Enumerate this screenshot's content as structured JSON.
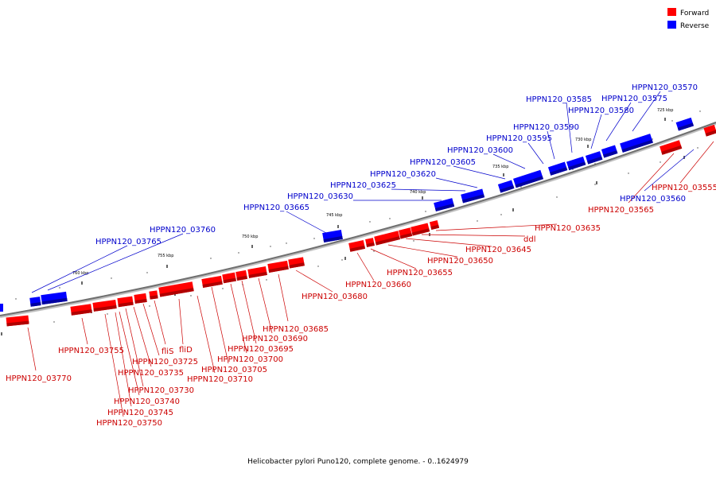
{
  "footer": "Helicobacter pylori Puno120, complete genome. - 0..1624979",
  "legend": [
    {
      "label": "Forward",
      "color": "#ff0000"
    },
    {
      "label": "Reverse",
      "color": "#0000ff"
    }
  ],
  "colors": {
    "forward": "#ff0000",
    "forward_dark": "#b00000",
    "reverse": "#0000ff",
    "reverse_dark": "#0000a0",
    "forward_label": "#cc0000",
    "reverse_label": "#0000cc",
    "backbone": "#808080"
  },
  "ticks": [
    "725 kbp",
    "730 kbp",
    "735 kbp",
    "740 kbp",
    "745 kbp",
    "750 kbp",
    "755 kbp",
    "760 kbp"
  ],
  "genes_forward": [
    "HPPN120_03555",
    "HPPN120_03565",
    "HPPN120_03635",
    "ddl",
    "HPPN120_03645",
    "HPPN120_03650",
    "HPPN120_03655",
    "HPPN120_03660",
    "HPPN120_03680",
    "HPPN120_03685",
    "HPPN120_03690",
    "HPPN120_03695",
    "HPPN120_03700",
    "HPPN120_03705",
    "HPPN120_03710",
    "fliD",
    "fliS",
    "HPPN120_03725",
    "HPPN120_03735",
    "HPPN120_03730",
    "HPPN120_03740",
    "HPPN120_03745",
    "HPPN120_03750",
    "HPPN120_03755",
    "HPPN120_03770"
  ],
  "genes_reverse": [
    "HPPN120_03570",
    "HPPN120_03575",
    "HPPN120_03580",
    "HPPN120_03585",
    "HPPN120_03590",
    "HPPN120_03595",
    "HPPN120_03600",
    "HPPN120_03605",
    "HPPN120_03620",
    "HPPN120_03625",
    "HPPN120_03630",
    "HPPN120_03665",
    "HPPN120_03760",
    "HPPN120_03765",
    "HPPN120_03560"
  ]
}
